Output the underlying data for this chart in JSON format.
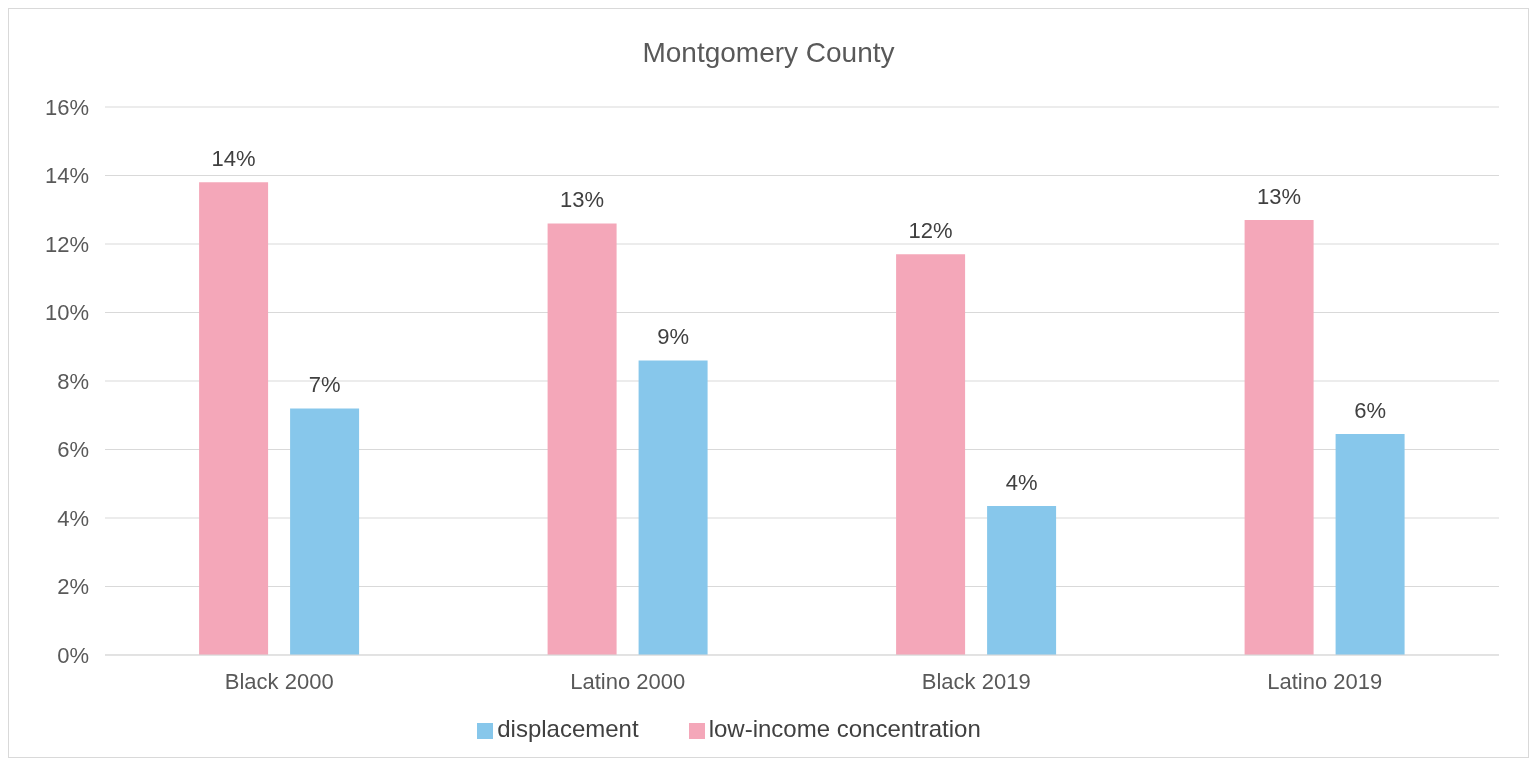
{
  "chart_data": {
    "type": "bar",
    "title": "Montgomery County",
    "categories": [
      "Black 2000",
      "Latino 2000",
      "Black 2019",
      "Latino 2019"
    ],
    "series": [
      {
        "name": "low-income concentration",
        "color": "#f4a7b9",
        "values": [
          13.8,
          12.6,
          11.7,
          12.7
        ],
        "value_labels": [
          "14%",
          "13%",
          "12%",
          "13%"
        ]
      },
      {
        "name": "displacement",
        "color": "#87c7eb",
        "values": [
          7.2,
          8.6,
          4.35,
          6.45
        ],
        "value_labels": [
          "7%",
          "9%",
          "4%",
          "6%"
        ]
      }
    ],
    "ylim": [
      0,
      16
    ],
    "yticks": [
      {
        "value": 0,
        "label": "0%"
      },
      {
        "value": 2,
        "label": "2%"
      },
      {
        "value": 4,
        "label": "4%"
      },
      {
        "value": 6,
        "label": "6%"
      },
      {
        "value": 8,
        "label": "8%"
      },
      {
        "value": 10,
        "label": "10%"
      },
      {
        "value": 12,
        "label": "12%"
      },
      {
        "value": 14,
        "label": "14%"
      },
      {
        "value": 16,
        "label": "16%"
      }
    ],
    "grid": "y",
    "legend": "bottom"
  }
}
